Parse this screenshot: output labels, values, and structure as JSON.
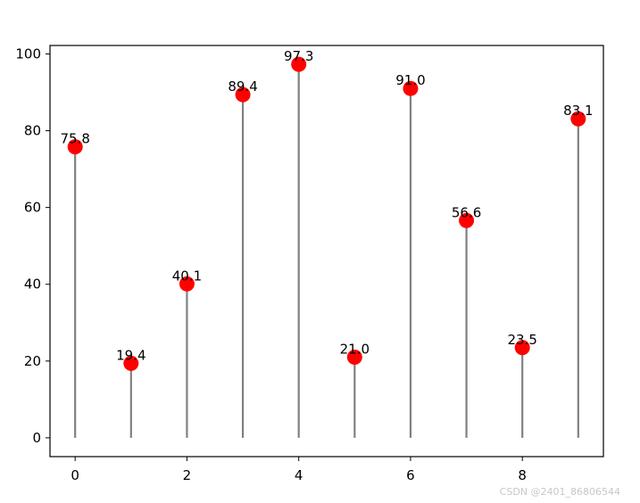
{
  "chart_data": {
    "type": "lollipop",
    "title": "",
    "xlabel": "",
    "ylabel": "",
    "x": [
      0,
      1,
      2,
      3,
      4,
      5,
      6,
      7,
      8,
      9
    ],
    "values": [
      75.8,
      19.4,
      40.1,
      89.4,
      97.3,
      21.0,
      91.0,
      56.6,
      23.5,
      83.1
    ],
    "data_labels": [
      "75.8",
      "19.4",
      "40.1",
      "89.4",
      "97.3",
      "21.0",
      "91.0",
      "56.6",
      "23.5",
      "83.1"
    ],
    "xlim": [
      -0.45,
      9.45
    ],
    "ylim": [
      -4.9,
      102.2
    ],
    "x_ticks": [
      0,
      2,
      4,
      6,
      8
    ],
    "x_tick_labels": [
      "0",
      "2",
      "4",
      "6",
      "8"
    ],
    "y_ticks": [
      0,
      20,
      40,
      60,
      80,
      100
    ],
    "y_tick_labels": [
      "0",
      "20",
      "40",
      "60",
      "80",
      "100"
    ],
    "grid": false,
    "colors": {
      "marker": "#ff0000",
      "stem": "#808080",
      "axis": "#000000"
    }
  },
  "watermark": "CSDN @2401_86806544"
}
